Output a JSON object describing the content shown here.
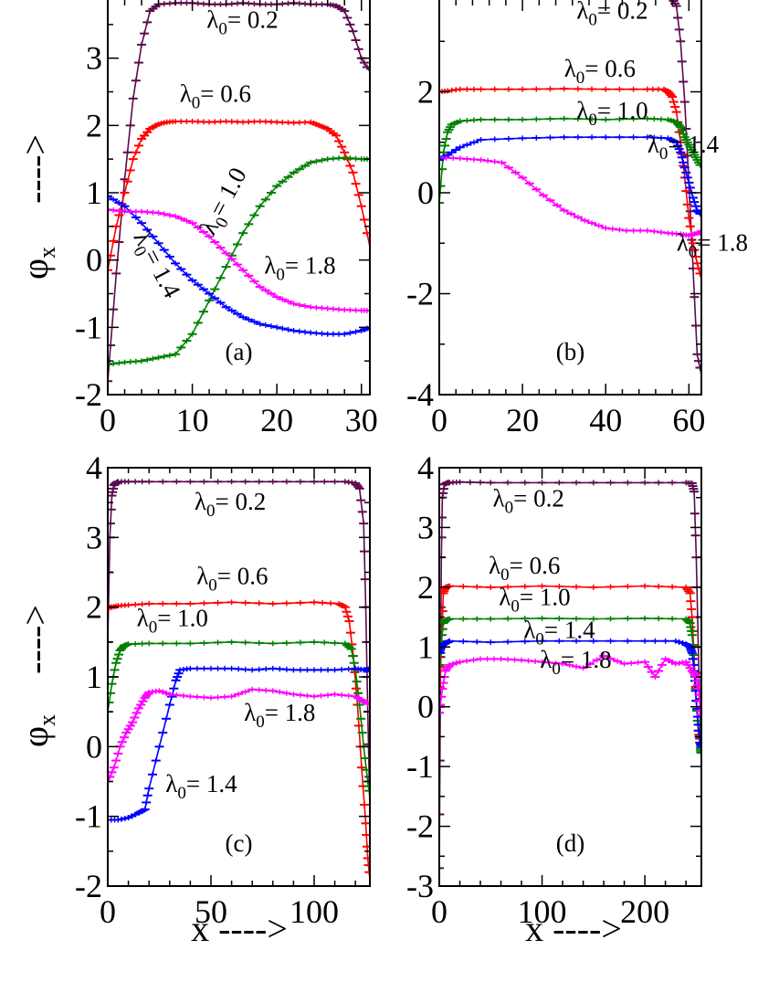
{
  "figure": {
    "x_axis_title": "x ---->",
    "y_axis_title_symbol": "φ",
    "y_axis_title_subscript": "x",
    "y_axis_title_arrow": "---->",
    "label_prefix": "λ",
    "label_subscript": "0"
  },
  "colors": {
    "0.2": "#5c0a4e",
    "0.6": "#ff0000",
    "1.0": "#008000",
    "1.4": "#0000ff",
    "1.8": "#ff00ff"
  },
  "chart_data": [
    {
      "type": "line",
      "panel": "(a)",
      "xlim": [
        0,
        31
      ],
      "ylim": [
        -2,
        4
      ],
      "xticks": [
        0,
        10,
        20,
        30
      ],
      "yticks": [
        -2,
        -1,
        0,
        1,
        2,
        3
      ],
      "series": [
        {
          "name": "0.2",
          "x": [
            0,
            1,
            2,
            3,
            4,
            5,
            6,
            8,
            10,
            12,
            14,
            16,
            18,
            20,
            22,
            24,
            26,
            27,
            28,
            29,
            30,
            31
          ],
          "y": [
            -1.8,
            -0.2,
            1.2,
            2.4,
            3.2,
            3.7,
            3.8,
            3.82,
            3.82,
            3.8,
            3.8,
            3.82,
            3.8,
            3.8,
            3.82,
            3.8,
            3.8,
            3.78,
            3.7,
            3.4,
            3.0,
            2.8
          ]
        },
        {
          "name": "0.6",
          "x": [
            0,
            1,
            2,
            3,
            4,
            5,
            6,
            7,
            8,
            10,
            12,
            14,
            16,
            18,
            20,
            22,
            24,
            25,
            26,
            27,
            28,
            29,
            30,
            31
          ],
          "y": [
            -0.15,
            0.5,
            1.0,
            1.5,
            1.8,
            1.95,
            2.02,
            2.05,
            2.06,
            2.06,
            2.05,
            2.06,
            2.05,
            2.06,
            2.05,
            2.04,
            2.05,
            2.0,
            1.95,
            1.85,
            1.6,
            1.3,
            0.8,
            0.2
          ]
        },
        {
          "name": "1.0",
          "x": [
            0,
            2,
            4,
            6,
            8,
            10,
            12,
            14,
            16,
            18,
            20,
            22,
            24,
            26,
            28,
            30,
            31
          ],
          "y": [
            -1.55,
            -1.52,
            -1.5,
            -1.45,
            -1.4,
            -1.1,
            -0.6,
            -0.1,
            0.4,
            0.8,
            1.1,
            1.3,
            1.45,
            1.5,
            1.52,
            1.5,
            1.5
          ]
        },
        {
          "name": "1.4",
          "x": [
            0,
            2,
            4,
            6,
            8,
            10,
            12,
            14,
            16,
            18,
            20,
            22,
            24,
            26,
            28,
            30,
            31
          ],
          "y": [
            0.95,
            0.8,
            0.55,
            0.25,
            -0.05,
            -0.3,
            -0.5,
            -0.7,
            -0.85,
            -0.95,
            -1.0,
            -1.05,
            -1.08,
            -1.1,
            -1.1,
            -1.05,
            -1.0
          ]
        },
        {
          "name": "1.8",
          "x": [
            0,
            2,
            4,
            6,
            8,
            10,
            12,
            14,
            16,
            18,
            20,
            22,
            24,
            26,
            28,
            30,
            31
          ],
          "y": [
            0.75,
            0.72,
            0.72,
            0.7,
            0.65,
            0.55,
            0.35,
            0.1,
            -0.15,
            -0.4,
            -0.55,
            -0.65,
            -0.7,
            -0.72,
            -0.74,
            -0.75,
            -0.75
          ]
        }
      ],
      "annotations": [
        {
          "value": "= 0.2",
          "x": 11.7,
          "y": 3.45,
          "rotate": 0
        },
        {
          "value": "= 0.6",
          "x": 8.5,
          "y": 2.35,
          "rotate": 0
        },
        {
          "value": "= 1.0",
          "x": 12.5,
          "y": 0.35,
          "rotate": -62
        },
        {
          "value": "= 1.4",
          "x": 3.0,
          "y": 0.35,
          "rotate": 62
        },
        {
          "value": "= 1.8",
          "x": 18.5,
          "y": -0.2,
          "rotate": 0
        }
      ]
    },
    {
      "type": "line",
      "panel": "(b)",
      "xlim": [
        0,
        63
      ],
      "ylim": [
        -4,
        4
      ],
      "xticks": [
        0,
        20,
        40,
        60
      ],
      "yticks": [
        -4,
        -2,
        0,
        2
      ],
      "series": [
        {
          "name": "0.2",
          "x": [
            0,
            5,
            10,
            20,
            30,
            40,
            50,
            54,
            56,
            57,
            58,
            59,
            60,
            61,
            62,
            63
          ],
          "y": [
            3.95,
            3.95,
            3.9,
            3.9,
            3.92,
            3.9,
            3.9,
            3.9,
            3.85,
            3.7,
            3.0,
            1.8,
            0.2,
            -1.5,
            -3.2,
            -3.6
          ]
        },
        {
          "name": "0.6",
          "x": [
            0,
            2,
            5,
            10,
            20,
            30,
            40,
            50,
            54,
            55,
            56,
            57,
            58,
            59,
            60,
            61,
            62,
            63
          ],
          "y": [
            2.0,
            2.02,
            2.05,
            2.05,
            2.05,
            2.06,
            2.05,
            2.05,
            2.05,
            2.0,
            1.9,
            1.6,
            1.0,
            0.3,
            -0.5,
            -1.0,
            -1.4,
            -1.7
          ]
        },
        {
          "name": "1.0",
          "x": [
            0,
            1,
            2,
            3,
            5,
            10,
            20,
            30,
            40,
            50,
            55,
            57,
            58,
            59,
            60,
            61,
            62,
            63
          ],
          "y": [
            -0.2,
            0.8,
            1.2,
            1.35,
            1.42,
            1.45,
            1.45,
            1.47,
            1.45,
            1.47,
            1.45,
            1.4,
            1.3,
            1.1,
            0.95,
            0.8,
            0.65,
            0.5
          ]
        },
        {
          "name": "1.4",
          "x": [
            0,
            2,
            5,
            10,
            20,
            30,
            40,
            50,
            55,
            57,
            58,
            59,
            60,
            61,
            62,
            63
          ],
          "y": [
            0.65,
            0.75,
            0.9,
            1.05,
            1.08,
            1.1,
            1.1,
            1.1,
            1.08,
            1.0,
            0.8,
            0.5,
            0.2,
            -0.1,
            -0.35,
            -0.45
          ]
        },
        {
          "name": "1.8",
          "x": [
            0,
            5,
            10,
            15,
            20,
            25,
            30,
            35,
            40,
            45,
            50,
            55,
            58,
            60,
            62,
            63
          ],
          "y": [
            0.7,
            0.68,
            0.65,
            0.6,
            0.3,
            -0.05,
            -0.35,
            -0.55,
            -0.7,
            -0.75,
            -0.75,
            -0.8,
            -0.82,
            -0.85,
            -0.8,
            -0.78
          ]
        }
      ],
      "annotations": [
        {
          "value": "= 0.2",
          "x": 33.0,
          "y": 3.45,
          "rotate": 0
        },
        {
          "value": "= 0.6",
          "x": 30.0,
          "y": 2.3,
          "rotate": 0
        },
        {
          "value": "= 1.0",
          "x": 33.0,
          "y": 1.47,
          "rotate": 0
        },
        {
          "value": "= 1.4",
          "x": 50.0,
          "y": 0.8,
          "rotate": 0
        },
        {
          "value": "= 1.8",
          "x": 57.0,
          "y": -1.15,
          "rotate": 0
        }
      ]
    },
    {
      "type": "line",
      "panel": "(c)",
      "xlim": [
        0,
        127
      ],
      "ylim": [
        -2,
        4
      ],
      "xticks": [
        0,
        50,
        100
      ],
      "yticks": [
        -2,
        -1,
        0,
        1,
        2,
        3,
        4
      ],
      "series": [
        {
          "name": "0.2",
          "x": [
            0,
            1,
            2,
            3,
            4,
            5,
            10,
            20,
            40,
            60,
            80,
            100,
            115,
            120,
            122,
            124,
            125,
            126,
            127
          ],
          "y": [
            1.5,
            3.0,
            3.6,
            3.75,
            3.78,
            3.8,
            3.8,
            3.8,
            3.8,
            3.8,
            3.8,
            3.8,
            3.8,
            3.78,
            3.7,
            3.2,
            2.0,
            0.5,
            -0.9
          ]
        },
        {
          "name": "0.6",
          "x": [
            0,
            2,
            5,
            10,
            20,
            40,
            60,
            80,
            100,
            112,
            115,
            117,
            119,
            121,
            123,
            125,
            126,
            127
          ],
          "y": [
            2.0,
            2.0,
            2.02,
            2.03,
            2.05,
            2.05,
            2.07,
            2.05,
            2.07,
            2.05,
            2.0,
            1.8,
            1.3,
            0.6,
            -0.3,
            -1.1,
            -1.6,
            -1.9
          ]
        },
        {
          "name": "1.0",
          "x": [
            0,
            2,
            4,
            6,
            8,
            10,
            20,
            40,
            60,
            80,
            100,
            115,
            118,
            120,
            122,
            124,
            126,
            127
          ],
          "y": [
            0.5,
            0.9,
            1.2,
            1.38,
            1.45,
            1.47,
            1.48,
            1.48,
            1.5,
            1.48,
            1.5,
            1.48,
            1.4,
            1.1,
            0.6,
            0.0,
            -0.5,
            -0.7
          ]
        },
        {
          "name": "1.4",
          "x": [
            0,
            5,
            10,
            15,
            18,
            20,
            25,
            30,
            33,
            35,
            40,
            50,
            60,
            70,
            80,
            90,
            100,
            110,
            120,
            124,
            126,
            127
          ],
          "y": [
            -1.05,
            -1.05,
            -1.02,
            -0.95,
            -0.9,
            -0.6,
            0.0,
            0.6,
            0.95,
            1.1,
            1.12,
            1.12,
            1.12,
            1.1,
            1.12,
            1.1,
            1.1,
            1.1,
            1.12,
            1.1,
            1.1,
            1.12
          ]
        },
        {
          "name": "1.8",
          "x": [
            0,
            3,
            6,
            9,
            12,
            15,
            18,
            20,
            25,
            30,
            40,
            50,
            60,
            70,
            80,
            90,
            100,
            110,
            120,
            124,
            127
          ],
          "y": [
            -0.5,
            -0.3,
            0.0,
            0.2,
            0.35,
            0.55,
            0.7,
            0.78,
            0.8,
            0.75,
            0.72,
            0.7,
            0.72,
            0.82,
            0.8,
            0.75,
            0.72,
            0.75,
            0.72,
            0.65,
            0.6
          ]
        }
      ],
      "annotations": [
        {
          "value": "= 0.2",
          "x": 42.0,
          "y": 3.4,
          "rotate": 0
        },
        {
          "value": "= 0.6",
          "x": 43.0,
          "y": 2.33,
          "rotate": 0
        },
        {
          "value": "= 1.0",
          "x": 14.0,
          "y": 1.73,
          "rotate": 0
        },
        {
          "value": "= 1.8",
          "x": 66.0,
          "y": 0.37,
          "rotate": 0
        },
        {
          "value": "= 1.4",
          "x": 28.0,
          "y": -0.65,
          "rotate": 0
        }
      ]
    },
    {
      "type": "line",
      "panel": "(d)",
      "xlim": [
        0,
        255
      ],
      "ylim": [
        -3,
        4
      ],
      "xticks": [
        0,
        100,
        200
      ],
      "yticks": [
        -3,
        -2,
        -1,
        0,
        1,
        2,
        3,
        4
      ],
      "series": [
        {
          "name": "0.2",
          "x": [
            0,
            1,
            2,
            3,
            5,
            8,
            10,
            20,
            50,
            100,
            150,
            200,
            240,
            246,
            248,
            250,
            252,
            254,
            255
          ],
          "y": [
            -2.7,
            0.0,
            2.5,
            3.5,
            3.72,
            3.75,
            3.75,
            3.76,
            3.75,
            3.75,
            3.75,
            3.75,
            3.75,
            3.74,
            3.6,
            2.5,
            1.0,
            -0.3,
            -1.0
          ]
        },
        {
          "name": "0.6",
          "x": [
            0,
            2,
            4,
            6,
            10,
            50,
            100,
            150,
            200,
            240,
            244,
            246,
            248,
            250,
            252,
            254,
            255
          ],
          "y": [
            0.0,
            1.0,
            1.9,
            2.0,
            2.02,
            2.0,
            2.02,
            2.0,
            2.02,
            2.0,
            1.9,
            1.5,
            0.8,
            0.1,
            -0.4,
            -0.6,
            -0.7
          ]
        },
        {
          "name": "1.0",
          "x": [
            0,
            2,
            4,
            6,
            10,
            50,
            100,
            150,
            200,
            240,
            244,
            246,
            248,
            250,
            252,
            254,
            255
          ],
          "y": [
            0.5,
            1.1,
            1.4,
            1.45,
            1.47,
            1.47,
            1.48,
            1.47,
            1.48,
            1.47,
            1.4,
            1.2,
            0.7,
            0.1,
            -0.4,
            -0.7,
            -0.8
          ]
        },
        {
          "name": "1.4",
          "x": [
            0,
            2,
            4,
            8,
            10,
            50,
            100,
            150,
            200,
            230,
            240,
            244,
            246,
            248,
            250,
            252,
            254,
            255
          ],
          "y": [
            0.9,
            1.0,
            1.05,
            1.08,
            1.1,
            1.08,
            1.1,
            1.1,
            1.1,
            1.1,
            1.05,
            1.0,
            0.9,
            0.6,
            0.1,
            -0.3,
            -0.6,
            -0.7
          ]
        },
        {
          "name": "1.8",
          "x": [
            0,
            3,
            6,
            10,
            20,
            40,
            60,
            80,
            100,
            120,
            140,
            160,
            180,
            200,
            210,
            220,
            230,
            240,
            246,
            250,
            252,
            254,
            255
          ],
          "y": [
            -0.1,
            0.3,
            0.6,
            0.7,
            0.75,
            0.8,
            0.8,
            0.78,
            0.75,
            0.72,
            0.65,
            0.85,
            0.72,
            0.75,
            0.5,
            0.8,
            0.72,
            0.75,
            0.6,
            0.5,
            0.3,
            0.0,
            -0.2
          ]
        }
      ],
      "annotations": [
        {
          "value": "= 0.2",
          "x": 52.0,
          "y": 3.35,
          "rotate": 0
        },
        {
          "value": "= 0.6",
          "x": 48.0,
          "y": 2.23,
          "rotate": 0
        },
        {
          "value": "= 1.0",
          "x": 58.0,
          "y": 1.7,
          "rotate": 0
        },
        {
          "value": "= 1.4",
          "x": 82.0,
          "y": 1.15,
          "rotate": 0
        },
        {
          "value": "= 1.8",
          "x": 98.0,
          "y": 0.65,
          "rotate": 0
        }
      ]
    }
  ]
}
